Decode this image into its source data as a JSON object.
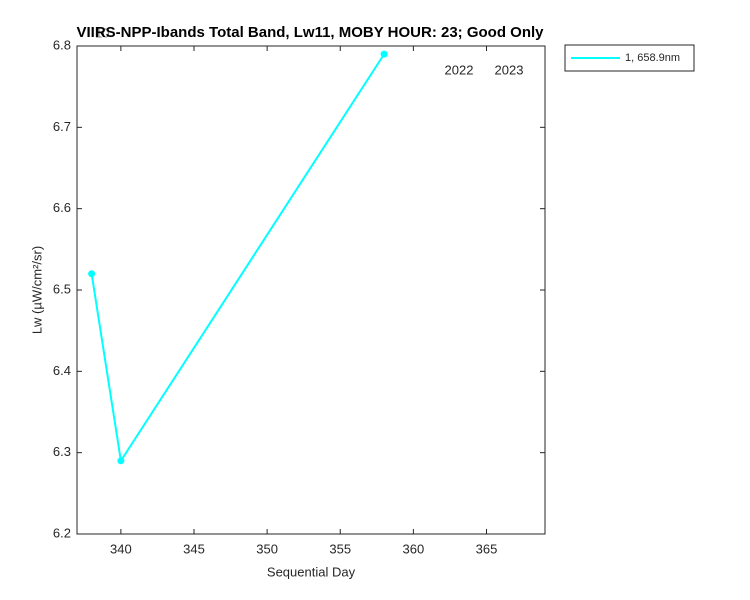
{
  "chart_data": {
    "type": "line",
    "title": "VIIRS-NPP-Ibands Total Band,  Lw11, MOBY HOUR: 23;  Good Only",
    "overlap_label": "10",
    "x_label": "Sequential Day",
    "y_label": "Lw (µW/cm²/sr)",
    "x": [
      338,
      340,
      358
    ],
    "series": [
      {
        "name": "1, 658.9nm",
        "color": "#00ffff",
        "values": [
          6.52,
          6.29,
          6.79
        ]
      }
    ],
    "xlim": [
      337,
      369
    ],
    "xticks": [
      340,
      345,
      350,
      355,
      360,
      365
    ],
    "ylim": [
      6.2,
      6.8
    ],
    "yticks": [
      6.2,
      6.3,
      6.4,
      6.5,
      6.6,
      6.7,
      6.8
    ],
    "annotations": [
      "2022",
      "2023"
    ],
    "legend": "outside-top-right"
  }
}
